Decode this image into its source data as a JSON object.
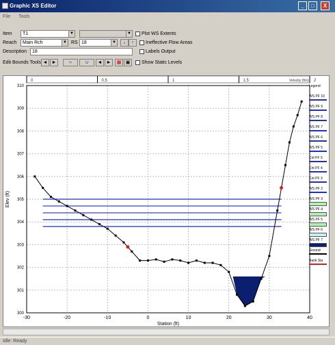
{
  "window": {
    "title": "Graphic XS Editor",
    "minimize": "_",
    "maximize": "□",
    "close": "X"
  },
  "menu": {
    "items": [
      "File",
      "Tools"
    ]
  },
  "controls": {
    "item_label": "Item",
    "item_value": "T1",
    "reach_label": "Reach",
    "reach_value": "Main Rch",
    "rs_label": "RS",
    "rs_value": "18",
    "description_label": "Description",
    "description_value": "18",
    "plot_wse_label": "Plot WS Extents",
    "plot_wse_checked": false,
    "ineff_label": "Ineffective Flow Areas",
    "ineff_checked": false,
    "labels_label": "Labels Output",
    "labels_checked": false,
    "static_label": "Show Static Levels",
    "static_checked": false,
    "edit_bounds_label": "Edit Bounds Tools"
  },
  "status": {
    "text": "Idle: Ready"
  },
  "icons": {
    "app": "app-icon",
    "dropdown": "chevron-down-icon",
    "up": "arrow-up-icon",
    "down": "arrow-down-icon",
    "pan_left": "pan-left-icon",
    "pan_right": "pan-right-icon",
    "wse": "water-surface-icon",
    "zoom_out": "zoom-out-icon",
    "zoom_in": "zoom-in-icon",
    "table": "table-icon",
    "plot": "plot-icon"
  },
  "colors": {
    "titlebar": "#0a246a",
    "ws_line": "#1f2fc8",
    "fill": "#0b1f6e",
    "ground": "#000000",
    "bank": "#e01b1b"
  },
  "chart_data": {
    "type": "line",
    "xlabel": "Station (ft)",
    "ylabel": "Elev (ft)",
    "xlim": [
      -30,
      40
    ],
    "ylim": [
      300,
      310
    ],
    "xticks": [
      "-30",
      "-20",
      "-10",
      "0",
      "10",
      "20",
      "30",
      "40"
    ],
    "yticks": [
      "300",
      "301",
      "302",
      "303",
      "304",
      "305",
      "306",
      "307",
      "308",
      "309",
      "310"
    ],
    "top_axis_ticks": [
      "0",
      "0.5",
      "1",
      "1.5",
      "2"
    ],
    "top_axis_label": "Velocity (ft/s)",
    "ground": {
      "name": "Ground",
      "x": [
        -28,
        -26,
        -24,
        -22,
        -20,
        -18,
        -16,
        -14,
        -12,
        -10,
        -8,
        -6,
        -4,
        -2,
        0,
        2,
        4,
        6,
        8,
        10,
        12,
        14,
        16,
        18,
        20,
        22,
        24,
        26,
        28,
        30,
        32,
        33,
        34,
        35,
        36,
        37,
        38
      ],
      "y": [
        306.0,
        305.5,
        305.1,
        304.9,
        304.7,
        304.5,
        304.3,
        304.1,
        303.9,
        303.7,
        303.4,
        303.1,
        302.7,
        302.3,
        302.3,
        302.35,
        302.25,
        302.35,
        302.3,
        302.2,
        302.3,
        302.2,
        302.2,
        302.1,
        301.8,
        300.8,
        300.3,
        300.5,
        301.5,
        302.5,
        304.5,
        305.5,
        306.5,
        307.5,
        308.2,
        308.7,
        309.3
      ]
    },
    "water_surfaces": [
      {
        "name": "WS PF 10",
        "y": 305.0
      },
      {
        "name": "WS PF 9",
        "y": 304.7
      },
      {
        "name": "WS PF 8",
        "y": 304.4
      },
      {
        "name": "WS PF 7",
        "y": 304.1
      },
      {
        "name": "WS PF 6",
        "y": 303.8
      }
    ],
    "filled_ws": {
      "name": "WS PF 1",
      "y": 301.6
    },
    "bank_stations": [
      -5,
      33
    ],
    "legend": [
      {
        "label": "Legend",
        "color": "#000000",
        "type": "title"
      },
      {
        "label": "WS PF 10",
        "color": "#1f2fc8",
        "type": "line"
      },
      {
        "label": "WS PF 9",
        "color": "#1f2fc8",
        "type": "line"
      },
      {
        "label": "WS PF 8",
        "color": "#1f2fc8",
        "type": "line"
      },
      {
        "label": "WS PF 7",
        "color": "#1f2fc8",
        "type": "line"
      },
      {
        "label": "WS PF 6",
        "color": "#1f2fc8",
        "type": "line"
      },
      {
        "label": "WS PF 5",
        "color": "#1f2fc8",
        "type": "line"
      },
      {
        "label": "Crit PF 5",
        "color": "#1f2fc8",
        "type": "line"
      },
      {
        "label": "Crit PF 4",
        "color": "#1f2fc8",
        "type": "line"
      },
      {
        "label": "Crit PF 3",
        "color": "#1f2fc8",
        "type": "line"
      },
      {
        "label": "WS PF 2",
        "color": "#1f2fc8",
        "type": "line"
      },
      {
        "label": "WS PF 3",
        "color": "#b0f0b0",
        "type": "fill"
      },
      {
        "label": "WS PF 4",
        "color": "#b0f0b0",
        "type": "fill"
      },
      {
        "label": "WS PF 5",
        "color": "#b0f0b0",
        "type": "fill"
      },
      {
        "label": "WS PF 6",
        "color": "#c8f0f0",
        "type": "fill"
      },
      {
        "label": "WS PF 7",
        "color": "#0b1f6e",
        "type": "fill"
      },
      {
        "label": "Ground",
        "color": "#000000",
        "type": "line"
      },
      {
        "label": "Bank Sta",
        "color": "#e01b1b",
        "type": "line"
      }
    ]
  }
}
